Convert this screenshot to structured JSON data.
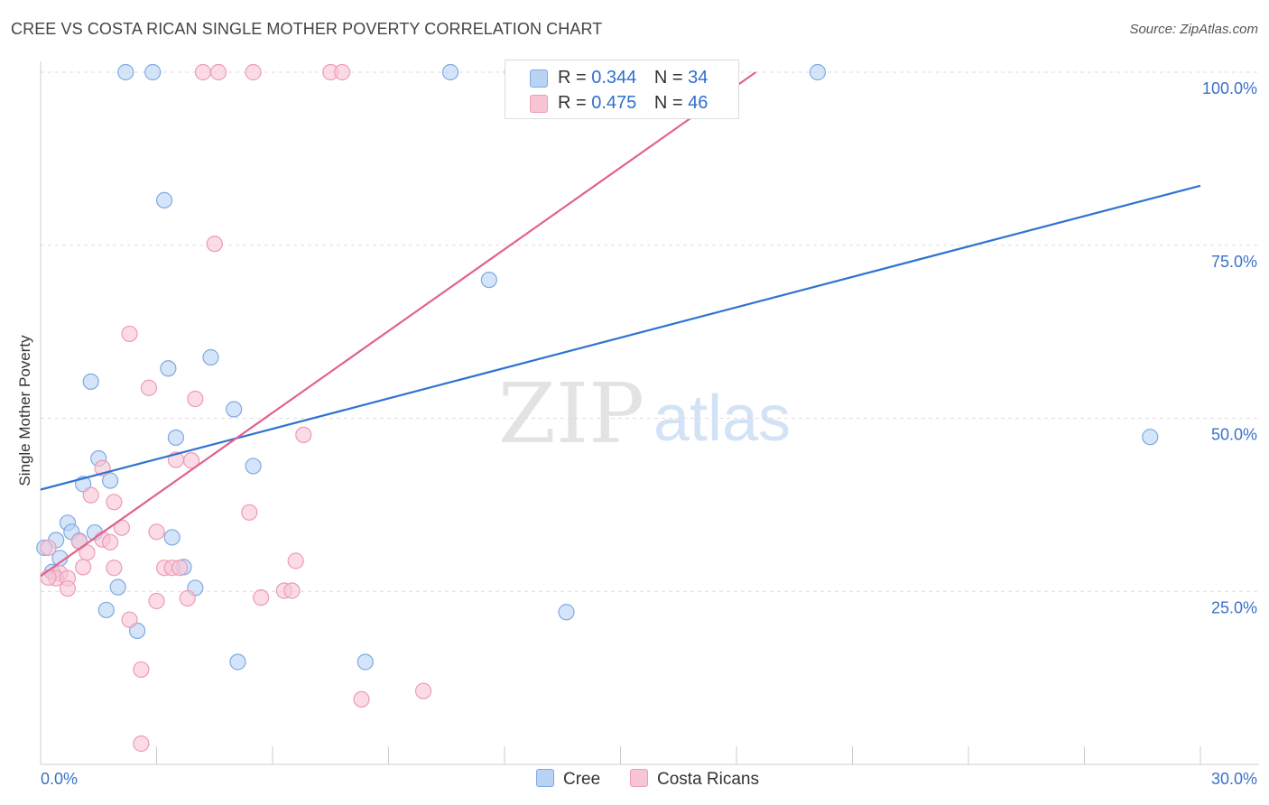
{
  "title": "CREE VS COSTA RICAN SINGLE MOTHER POVERTY CORRELATION CHART",
  "source": "Source: ZipAtlas.com",
  "watermark": {
    "zip": "ZIP",
    "atlas": "atlas"
  },
  "legend": {
    "r_label": "R =",
    "n_label": "N =",
    "cree": {
      "r": "0.344",
      "n": "34"
    },
    "costa": {
      "r": "0.475",
      "n": "46"
    }
  },
  "bottom_legend": {
    "cree": "Cree",
    "costa": "Costa Ricans"
  },
  "colors": {
    "cree_fill": "#b9d3f5",
    "cree_stroke": "#7fa9e0",
    "cree_line": "#2f73d0",
    "costa_fill": "#f8c5d5",
    "costa_stroke": "#ec9bb5",
    "costa_line": "#e2628b",
    "tick_text": "#3a72c8",
    "grid": "#dddddd"
  },
  "chart_data": {
    "type": "scatter",
    "title": "CREE VS COSTA RICAN SINGLE MOTHER POVERTY CORRELATION CHART",
    "xlabel": "",
    "ylabel": "Single Mother Poverty",
    "xlim": [
      0,
      30
    ],
    "ylim": [
      0,
      100
    ],
    "x_tick_labels": [
      "0.0%",
      "30.0%"
    ],
    "y_ticks": [
      25,
      50,
      75,
      100
    ],
    "y_tick_labels": [
      "25.0%",
      "50.0%",
      "75.0%",
      "100.0%"
    ],
    "grid": true,
    "legend_position": "top-center",
    "series": [
      {
        "name": "Cree",
        "r": 0.344,
        "n": 34,
        "points": [
          [
            2.2,
            100
          ],
          [
            2.9,
            100
          ],
          [
            10.6,
            100
          ],
          [
            14.2,
            100
          ],
          [
            20.1,
            100
          ],
          [
            3.2,
            81.5
          ],
          [
            11.6,
            70.0
          ],
          [
            4.4,
            58.8
          ],
          [
            3.3,
            57.2
          ],
          [
            1.3,
            55.3
          ],
          [
            5.0,
            51.3
          ],
          [
            3.5,
            47.2
          ],
          [
            28.7,
            47.3
          ],
          [
            1.5,
            44.2
          ],
          [
            5.5,
            43.1
          ],
          [
            1.1,
            40.5
          ],
          [
            1.8,
            41.0
          ],
          [
            0.7,
            34.9
          ],
          [
            0.8,
            33.6
          ],
          [
            1.4,
            33.5
          ],
          [
            0.4,
            32.4
          ],
          [
            1.0,
            32.3
          ],
          [
            3.4,
            32.8
          ],
          [
            0.1,
            31.3
          ],
          [
            0.5,
            29.8
          ],
          [
            0.3,
            27.8
          ],
          [
            3.7,
            28.5
          ],
          [
            2.0,
            25.6
          ],
          [
            4.0,
            25.5
          ],
          [
            1.7,
            22.3
          ],
          [
            2.5,
            19.3
          ],
          [
            13.6,
            22.0
          ],
          [
            5.1,
            14.8
          ],
          [
            8.4,
            14.8
          ]
        ]
      },
      {
        "name": "Costa Ricans",
        "r": 0.475,
        "n": 46,
        "points": [
          [
            4.2,
            100
          ],
          [
            4.6,
            100
          ],
          [
            5.5,
            100
          ],
          [
            7.5,
            100
          ],
          [
            7.8,
            100
          ],
          [
            12.2,
            100
          ],
          [
            16.4,
            100
          ],
          [
            4.5,
            75.2
          ],
          [
            2.3,
            62.2
          ],
          [
            2.8,
            54.4
          ],
          [
            4.0,
            52.8
          ],
          [
            6.8,
            47.6
          ],
          [
            3.5,
            44.0
          ],
          [
            3.9,
            43.9
          ],
          [
            1.6,
            42.8
          ],
          [
            1.3,
            38.9
          ],
          [
            1.9,
            37.9
          ],
          [
            5.4,
            36.4
          ],
          [
            2.1,
            34.2
          ],
          [
            3.0,
            33.6
          ],
          [
            1.6,
            32.5
          ],
          [
            1.8,
            32.1
          ],
          [
            1.0,
            32.2
          ],
          [
            1.2,
            30.6
          ],
          [
            0.2,
            31.3
          ],
          [
            1.1,
            28.5
          ],
          [
            1.9,
            28.4
          ],
          [
            3.2,
            28.4
          ],
          [
            3.4,
            28.4
          ],
          [
            3.6,
            28.4
          ],
          [
            6.6,
            29.4
          ],
          [
            0.5,
            27.6
          ],
          [
            0.4,
            26.9
          ],
          [
            0.2,
            27.0
          ],
          [
            0.7,
            26.9
          ],
          [
            0.7,
            25.4
          ],
          [
            6.3,
            25.1
          ],
          [
            6.5,
            25.1
          ],
          [
            3.0,
            23.6
          ],
          [
            3.8,
            24.0
          ],
          [
            5.7,
            24.1
          ],
          [
            2.3,
            20.9
          ],
          [
            2.6,
            13.7
          ],
          [
            9.9,
            10.6
          ],
          [
            8.3,
            9.4
          ],
          [
            2.6,
            3.0
          ]
        ]
      }
    ],
    "trend_lines": [
      {
        "name": "Cree",
        "x": [
          0,
          30
        ],
        "y": [
          39.7,
          83.6
        ]
      },
      {
        "name": "Costa Ricans",
        "x": [
          0,
          18.5
        ],
        "y": [
          27.2,
          100
        ]
      }
    ]
  }
}
